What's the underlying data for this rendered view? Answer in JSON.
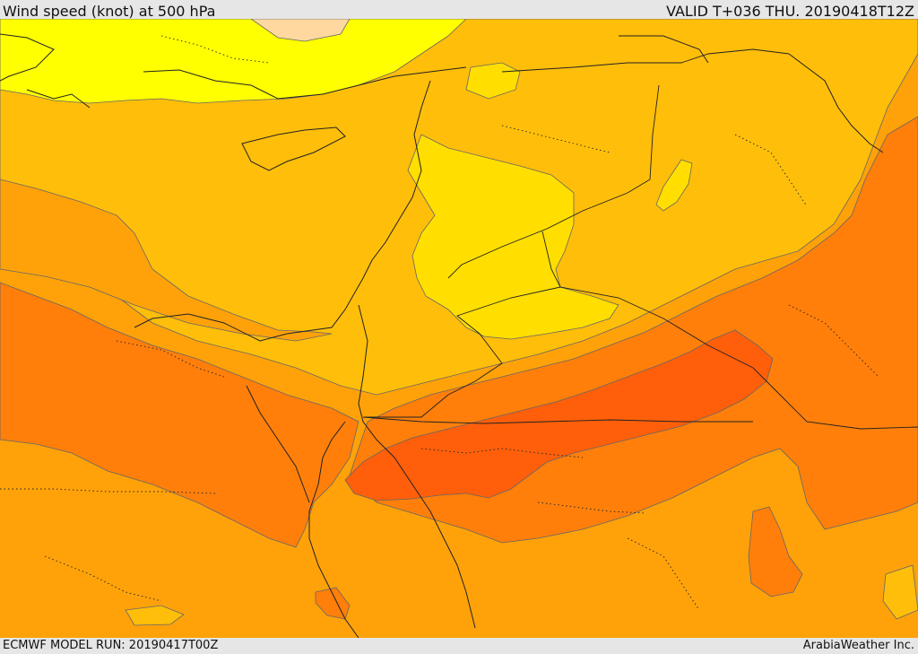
{
  "header": {
    "title": "Wind speed (knot) at 500 hPa",
    "valid": "VALID T+036 THU. 20190418T12Z"
  },
  "footer": {
    "model_run": "ECMWF MODEL RUN: 20190417T00Z",
    "credit": "ArabiaWeather Inc."
  },
  "colors": {
    "band_very_high": "#ff5f0a",
    "band_high": "#ff7f0a",
    "band_mid_high": "#ffa20a",
    "band_mid": "#ffbe0a",
    "band_low": "#ffde00",
    "band_very_low": "#ffff00",
    "band_calm": "#ffd8a0",
    "coastline": "#222222",
    "contour": "#555555"
  }
}
